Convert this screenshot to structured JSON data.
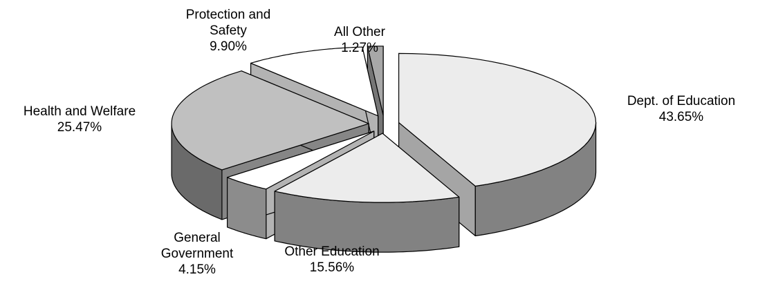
{
  "chart_data": {
    "type": "pie",
    "categories": [
      "Dept. of Education",
      "Other Education",
      "General Government",
      "Health and Welfare",
      "Protection and Safety",
      "All Other"
    ],
    "values": [
      43.65,
      15.56,
      4.15,
      25.47,
      9.9,
      1.27
    ],
    "value_labels": [
      "43.65%",
      "15.56%",
      "4.15%",
      "25.47%",
      "9.90%",
      "1.27%"
    ],
    "colors": [
      "#ececec",
      "#ececec",
      "#ffffff",
      "#c0c0c0",
      "#ffffff",
      "#a8a8a8"
    ]
  }
}
